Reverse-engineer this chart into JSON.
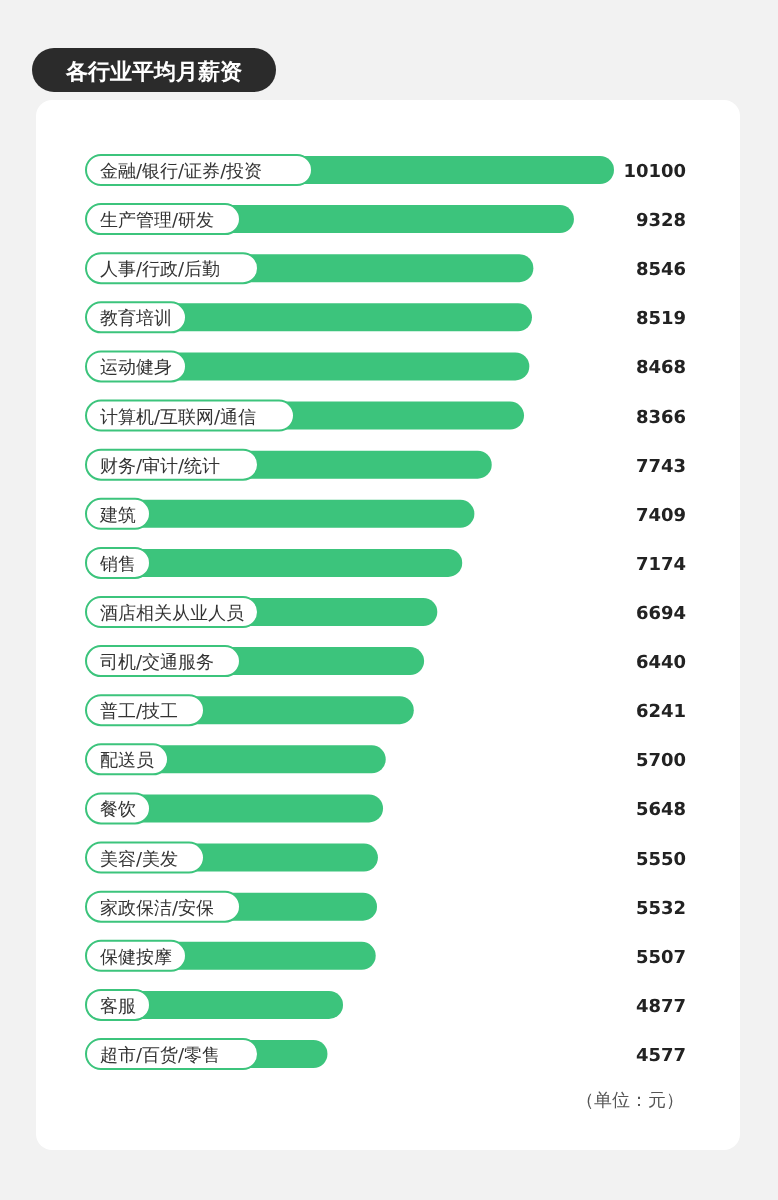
{
  "chart_data": {
    "type": "bar",
    "orientation": "horizontal",
    "title": "各行业平均月薪资",
    "color": "#3cc47c",
    "data_labels": true,
    "categories": [
      "金融/银行/证券/投资",
      "生产管理/研发",
      "人事/行政/后勤",
      "教育培训",
      "运动健身",
      "计算机/互联网/通信",
      "财务/审计/统计",
      "建筑",
      "销售",
      "酒店相关从业人员",
      "司机/交通服务",
      "普工/技工",
      "配送员",
      "餐饮",
      "美容/美发",
      "家政保洁/安保",
      "保健按摩",
      "客服",
      "超市/百货/零售"
    ],
    "values": [
      10100,
      9328,
      8546,
      8519,
      8468,
      8366,
      7743,
      7409,
      7174,
      6694,
      6440,
      6241,
      5700,
      5648,
      5550,
      5532,
      5507,
      4877,
      4577
    ],
    "annotations": [
      "（单位：元）"
    ]
  }
}
